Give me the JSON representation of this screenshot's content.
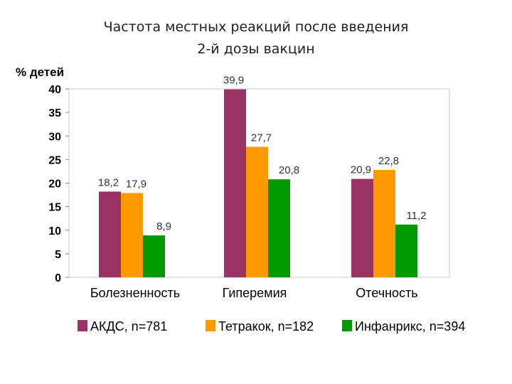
{
  "chart_data": {
    "type": "bar",
    "title_lines": [
      "Частота местных реакций после введения",
      "2-й дозы вакцин"
    ],
    "ylabel": "% детей",
    "categories": [
      "Болезненность",
      "Гиперемия",
      "Отечность"
    ],
    "series": [
      {
        "name": "АКДС, n=781",
        "color": "#993366",
        "values": [
          18.2,
          39.9,
          20.9
        ],
        "labels": [
          "18,2",
          "39,9",
          "20,9"
        ]
      },
      {
        "name": "Тетракок, n=182",
        "color": "#ff9900",
        "values": [
          17.9,
          27.7,
          22.8
        ],
        "labels": [
          "17,9",
          "27,7",
          "22,8"
        ]
      },
      {
        "name": "Инфанрикс, n=394",
        "color": "#009900",
        "values": [
          8.9,
          20.8,
          11.2
        ],
        "labels": [
          "8,9",
          "20,8",
          "11,2"
        ]
      }
    ],
    "ylim": [
      0,
      40
    ],
    "yticks": [
      "0",
      "5",
      "10",
      "15",
      "20",
      "25",
      "30",
      "35",
      "40"
    ],
    "grid": false,
    "legend_position": "bottom"
  }
}
